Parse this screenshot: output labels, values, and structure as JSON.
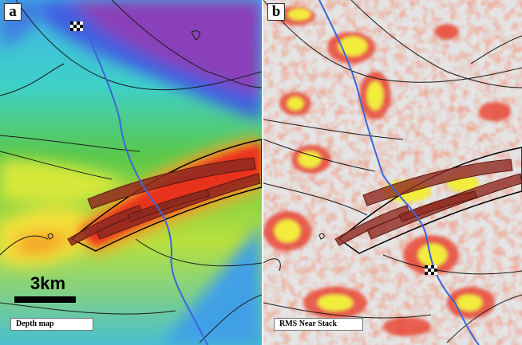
{
  "panels": [
    {
      "letter": "a",
      "label": "Depth map"
    },
    {
      "letter": "b",
      "label": "RMS Near Stack"
    }
  ],
  "scale": {
    "text": "3km"
  },
  "colors": {
    "deep_purple": "#8a3fb8",
    "blue": "#3f6fe0",
    "cyan": "#3fc4e6",
    "green": "#35c15a",
    "yellow_green": "#b8e03c",
    "yellow": "#f5e63a",
    "orange": "#f4a328",
    "red": "#e8321e",
    "fault_fill": "#8e2a20",
    "fault_line": "#3a66d8",
    "contour": "#1a1a1a",
    "rms_background": "#e6e6e6",
    "rms_yellow": "#f2ec3c",
    "rms_red": "#e8402a"
  }
}
